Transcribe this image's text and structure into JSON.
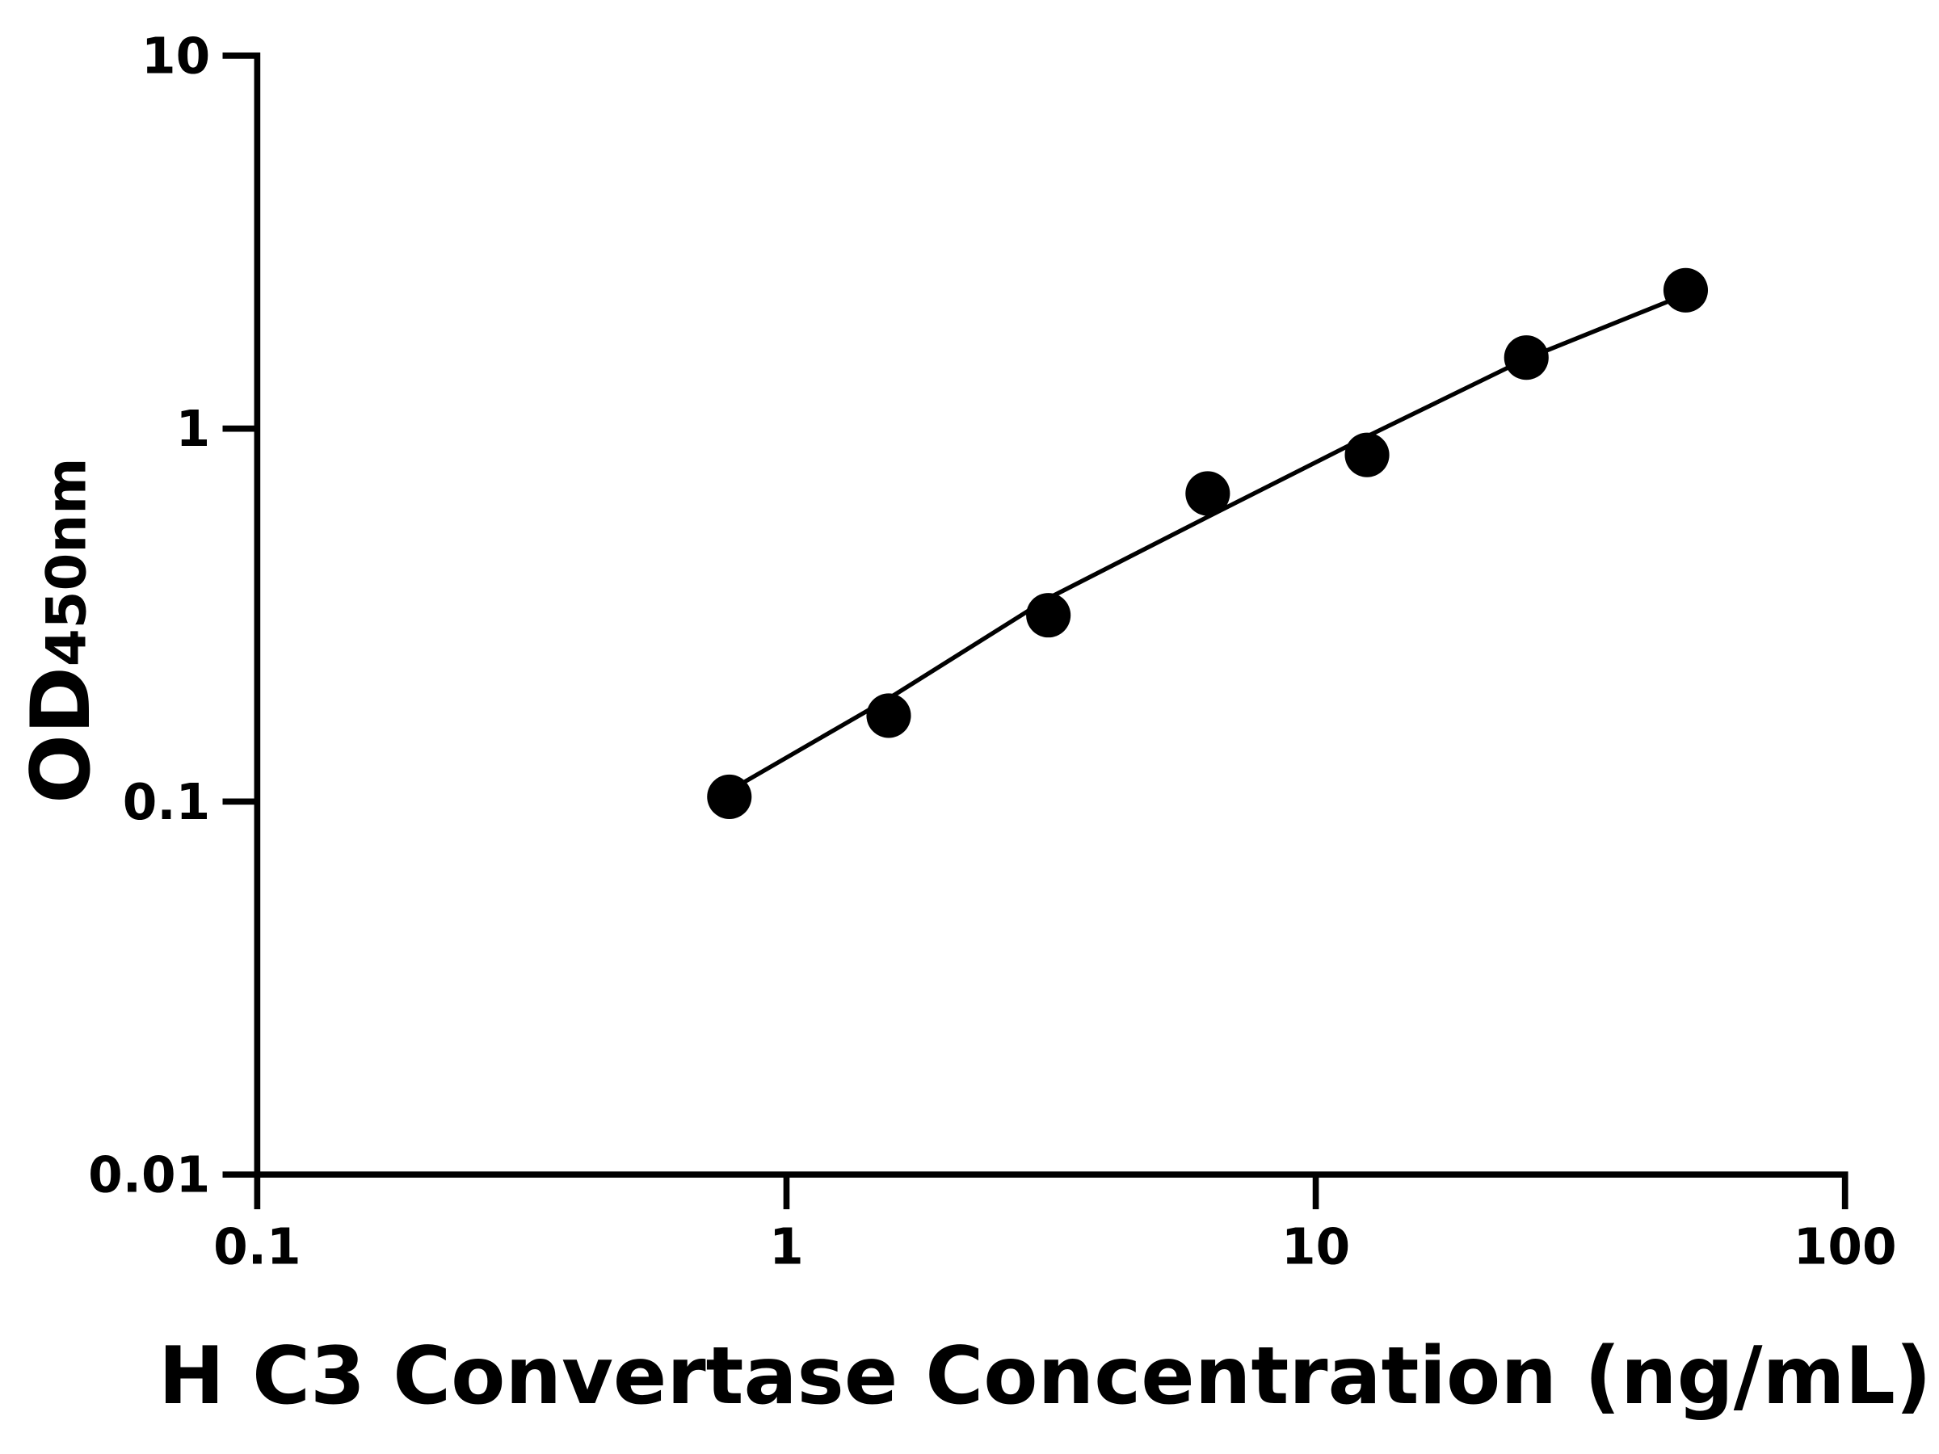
{
  "chart_data": {
    "type": "scatter",
    "x_label": "H C3 Convertase Concentration (ng/mL)",
    "y_label": "OD",
    "y_label_subscript": "450nm",
    "x_scale": "log",
    "y_scale": "log",
    "xlim": [
      0.1,
      100
    ],
    "ylim": [
      0.01,
      10
    ],
    "xticks": [
      0.1,
      1,
      10,
      100
    ],
    "yticks": [
      0.01,
      0.1,
      1,
      10
    ],
    "grid": false,
    "series": [
      {
        "mode": "markers",
        "color": "#000000",
        "x": [
          0.78,
          1.56,
          3.125,
          6.25,
          12.5,
          25,
          50
        ],
        "values": [
          0.103,
          0.17,
          0.316,
          0.67,
          0.85,
          1.55,
          2.35
        ]
      },
      {
        "mode": "line",
        "color": "#000000",
        "x": [
          0.78,
          1.56,
          3.125,
          6.25,
          12.5,
          25,
          50
        ],
        "values": [
          0.107,
          0.189,
          0.351,
          0.58,
          0.953,
          1.54,
          2.29
        ]
      }
    ]
  }
}
